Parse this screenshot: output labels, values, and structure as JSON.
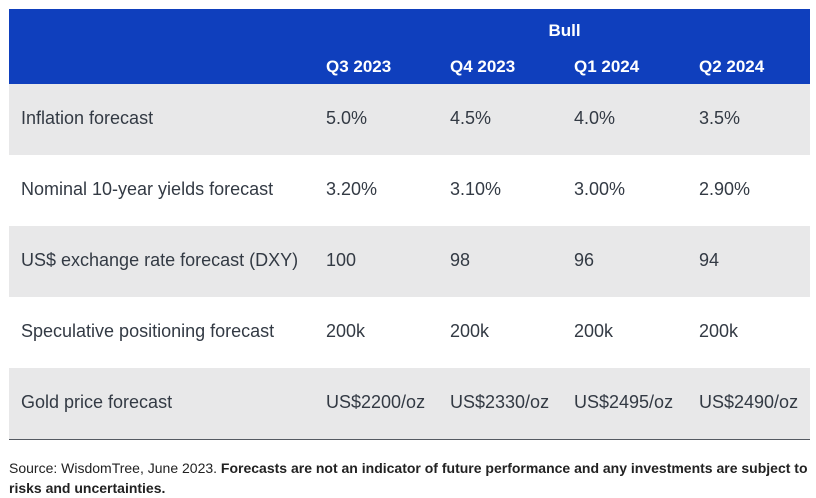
{
  "table": {
    "group_title": "Bull",
    "columns": [
      "Q3 2023",
      "Q4 2023",
      "Q1 2024",
      "Q2 2024"
    ],
    "rows": [
      {
        "label": "Inflation forecast",
        "values": [
          "5.0%",
          "4.5%",
          "4.0%",
          "3.5%"
        ]
      },
      {
        "label": "Nominal 10-year yields forecast",
        "values": [
          "3.20%",
          "3.10%",
          "3.00%",
          "2.90%"
        ]
      },
      {
        "label": "US$ exchange rate forecast (DXY)",
        "values": [
          "100",
          "98",
          "96",
          "94"
        ]
      },
      {
        "label": "Speculative positioning forecast",
        "values": [
          "200k",
          "200k",
          "200k",
          "200k"
        ]
      },
      {
        "label": "Gold price forecast",
        "values": [
          "US$2200/oz",
          "US$2330/oz",
          "US$2495/oz",
          "US$2490/oz"
        ]
      }
    ]
  },
  "footer": {
    "source": "Source: WisdomTree, June 2023. ",
    "disclaimer": "Forecasts are not an indicator of future performance and any investments are subject to risks and uncertainties."
  },
  "colors": {
    "header_bg": "#0f3fbd",
    "shaded_row": "#e8e8e9"
  }
}
